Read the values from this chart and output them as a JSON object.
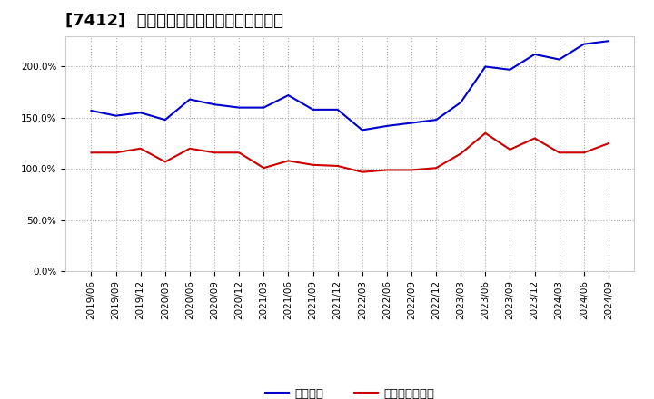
{
  "title": "[7412]  固定比率、固定長期適合率の推移",
  "x_labels": [
    "2019/06",
    "2019/09",
    "2019/12",
    "2020/03",
    "2020/06",
    "2020/09",
    "2020/12",
    "2021/03",
    "2021/06",
    "2021/09",
    "2021/12",
    "2022/03",
    "2022/06",
    "2022/09",
    "2022/12",
    "2023/03",
    "2023/06",
    "2023/09",
    "2023/12",
    "2024/03",
    "2024/06",
    "2024/09"
  ],
  "blue_values": [
    157,
    152,
    155,
    148,
    168,
    163,
    160,
    160,
    172,
    158,
    158,
    138,
    142,
    145,
    148,
    165,
    200,
    197,
    212,
    207,
    222,
    225
  ],
  "red_values": [
    116,
    116,
    120,
    107,
    120,
    116,
    116,
    101,
    108,
    104,
    103,
    97,
    99,
    99,
    101,
    115,
    135,
    119,
    130,
    116,
    116,
    125
  ],
  "ylim": [
    0,
    230
  ],
  "yticks": [
    0,
    50,
    100,
    150,
    200
  ],
  "ytick_labels": [
    "0.0%",
    "50.0%",
    "100.0%",
    "150.0%",
    "200.0%"
  ],
  "blue_color": "#0000cc",
  "red_color": "#cc0000",
  "bg_color": "#ffffff",
  "grid_color": "#aaaaaa",
  "legend_blue": "固定比率",
  "legend_red": "固定長期適合率",
  "title_fontsize": 13,
  "tick_fontsize": 7.5,
  "legend_fontsize": 9.5
}
